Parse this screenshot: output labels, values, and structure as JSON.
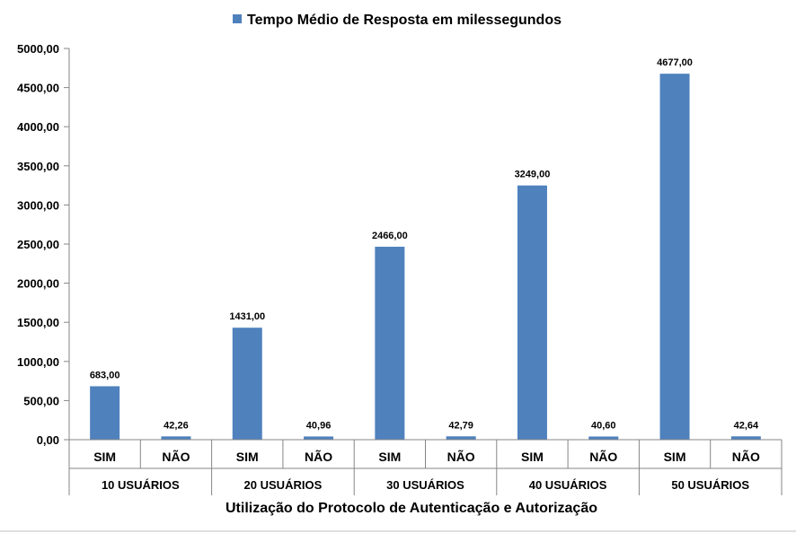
{
  "chart_data": {
    "type": "bar",
    "title": "",
    "legend": {
      "entries": [
        "Tempo Médio de Resposta em milessegundos"
      ],
      "position": "top"
    },
    "xlabel": "Utilização do Protocolo de Autenticação e Autorização",
    "ylabel": "",
    "ylim": [
      0,
      5000
    ],
    "yticks": [
      0,
      500,
      1000,
      1500,
      2000,
      2500,
      3000,
      3500,
      4000,
      4500,
      5000
    ],
    "ytick_labels": [
      "0,00",
      "500,00",
      "1000,00",
      "1500,00",
      "2000,00",
      "2500,00",
      "3000,00",
      "3500,00",
      "4000,00",
      "4500,00",
      "5000,00"
    ],
    "groups": [
      "10 USUÁRIOS",
      "20 USUÁRIOS",
      "30 USUÁRIOS",
      "40 USUÁRIOS",
      "50 USUÁRIOS"
    ],
    "subcategories": [
      "SIM",
      "NÃO"
    ],
    "categories": [
      "SIM",
      "NÃO",
      "SIM",
      "NÃO",
      "SIM",
      "NÃO",
      "SIM",
      "NÃO",
      "SIM",
      "NÃO"
    ],
    "series": [
      {
        "name": "Tempo Médio de Resposta em milessegundos",
        "values": [
          683.0,
          42.26,
          1431.0,
          40.96,
          2466.0,
          42.79,
          3249.0,
          40.6,
          4677.0,
          42.64
        ],
        "value_labels": [
          "683,00",
          "42,26",
          "1431,00",
          "40,96",
          "2466,00",
          "42,79",
          "3249,00",
          "40,60",
          "4677,00",
          "42,64"
        ]
      }
    ],
    "grid": false,
    "colors": {
      "bar": "#4F81BD",
      "axis": "#868686"
    }
  }
}
